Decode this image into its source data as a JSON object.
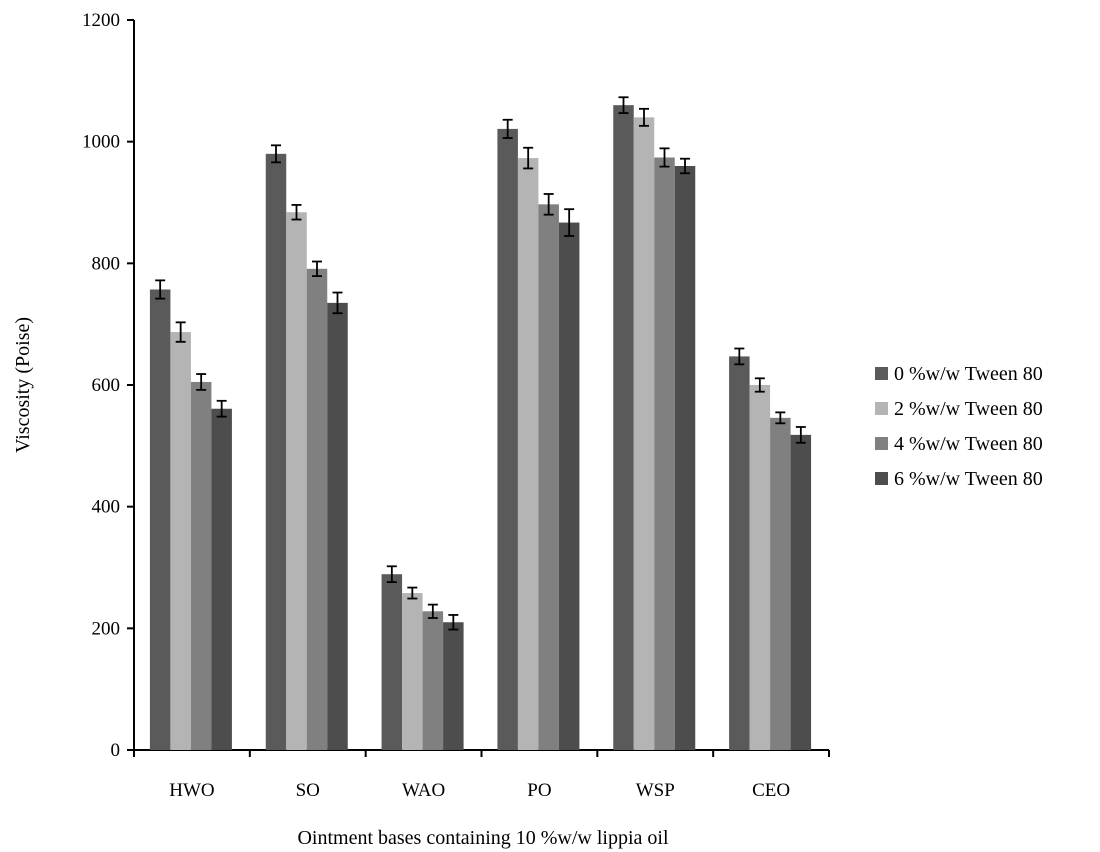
{
  "chart_data": {
    "type": "bar",
    "xlabel": "Ointment bases containing 10 %w/w lippia oil",
    "ylabel": "Viscosity (Poise)",
    "ylim": [
      0,
      1200
    ],
    "yticks": [
      0,
      200,
      400,
      600,
      800,
      1000,
      1200
    ],
    "categories": [
      "HWO",
      "SO",
      "WAO",
      "PO",
      "WSP",
      "CEO"
    ],
    "legend_position": "right",
    "series": [
      {
        "name": "0 %w/w Tween 80",
        "color": "#5a5a5a",
        "values": [
          757,
          980,
          289,
          1021,
          1060,
          647
        ],
        "errors": [
          15,
          14,
          13,
          15,
          13,
          13
        ]
      },
      {
        "name": "2 %w/w Tween 80",
        "color": "#b4b4b4",
        "values": [
          687,
          884,
          258,
          973,
          1040,
          600
        ],
        "errors": [
          16,
          12,
          9,
          17,
          14,
          11
        ]
      },
      {
        "name": "4 %w/w Tween 80",
        "color": "#808080",
        "values": [
          605,
          791,
          228,
          897,
          974,
          546
        ],
        "errors": [
          13,
          12,
          11,
          17,
          15,
          9
        ]
      },
      {
        "name": "6 %w/w Tween 80",
        "color": "#4d4d4d",
        "values": [
          561,
          735,
          210,
          867,
          960,
          518
        ],
        "errors": [
          13,
          17,
          12,
          22,
          12,
          13
        ]
      }
    ]
  }
}
